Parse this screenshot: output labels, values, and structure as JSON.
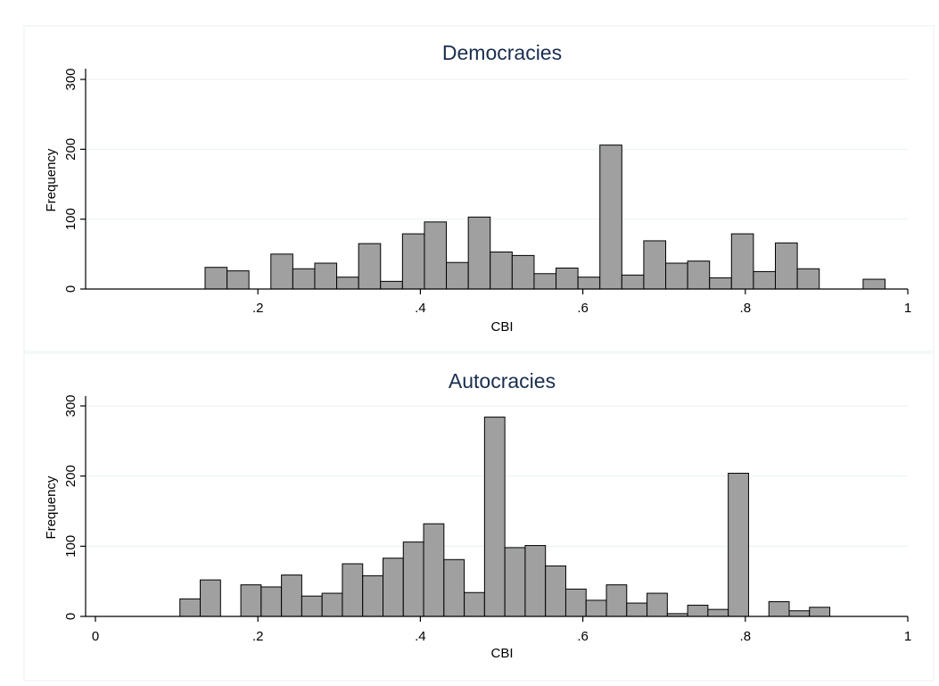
{
  "chart_data": [
    {
      "type": "bar",
      "title": "Democracies",
      "xlabel": "CBI",
      "ylabel": "Frequency",
      "xlim": [
        0,
        1
      ],
      "ylim": [
        0,
        300
      ],
      "xticks": [
        ".2",
        ".4",
        ".6",
        ".8",
        "1"
      ],
      "yticks": [
        "0",
        "100",
        "200",
        "300"
      ],
      "ytick_values": [
        0,
        100,
        200,
        300
      ],
      "xtick_values": [
        0.2,
        0.4,
        0.6,
        0.8,
        1.0
      ],
      "grid": true,
      "bin_width": 0.027,
      "bins": [
        {
          "x0": 0.135,
          "value": 31
        },
        {
          "x0": 0.162,
          "value": 26
        },
        {
          "x0": 0.216,
          "value": 50
        },
        {
          "x0": 0.243,
          "value": 29
        },
        {
          "x0": 0.27,
          "value": 37
        },
        {
          "x0": 0.297,
          "value": 17
        },
        {
          "x0": 0.324,
          "value": 65
        },
        {
          "x0": 0.351,
          "value": 11
        },
        {
          "x0": 0.378,
          "value": 79
        },
        {
          "x0": 0.405,
          "value": 96
        },
        {
          "x0": 0.432,
          "value": 38
        },
        {
          "x0": 0.459,
          "value": 103
        },
        {
          "x0": 0.486,
          "value": 53
        },
        {
          "x0": 0.513,
          "value": 48
        },
        {
          "x0": 0.54,
          "value": 22
        },
        {
          "x0": 0.567,
          "value": 30
        },
        {
          "x0": 0.594,
          "value": 17
        },
        {
          "x0": 0.621,
          "value": 206
        },
        {
          "x0": 0.648,
          "value": 20
        },
        {
          "x0": 0.675,
          "value": 69
        },
        {
          "x0": 0.702,
          "value": 37
        },
        {
          "x0": 0.729,
          "value": 40
        },
        {
          "x0": 0.756,
          "value": 16
        },
        {
          "x0": 0.783,
          "value": 79
        },
        {
          "x0": 0.81,
          "value": 25
        },
        {
          "x0": 0.837,
          "value": 66
        },
        {
          "x0": 0.864,
          "value": 29
        },
        {
          "x0": 0.945,
          "value": 14
        }
      ]
    },
    {
      "type": "bar",
      "title": "Autocracies",
      "xlabel": "CBI",
      "ylabel": "Frequency",
      "xlim": [
        0,
        1
      ],
      "ylim": [
        0,
        300
      ],
      "xticks": [
        "0",
        ".2",
        ".4",
        ".6",
        ".8",
        "1"
      ],
      "yticks": [
        "0",
        "100",
        "200",
        "300"
      ],
      "ytick_values": [
        0,
        100,
        200,
        300
      ],
      "xtick_values": [
        0,
        0.2,
        0.4,
        0.6,
        0.8,
        1.0
      ],
      "grid": true,
      "bin_width": 0.025,
      "bins": [
        {
          "x0": 0.104,
          "value": 25
        },
        {
          "x0": 0.129,
          "value": 52
        },
        {
          "x0": 0.179,
          "value": 45
        },
        {
          "x0": 0.204,
          "value": 42
        },
        {
          "x0": 0.229,
          "value": 59
        },
        {
          "x0": 0.254,
          "value": 29
        },
        {
          "x0": 0.279,
          "value": 33
        },
        {
          "x0": 0.304,
          "value": 75
        },
        {
          "x0": 0.329,
          "value": 58
        },
        {
          "x0": 0.354,
          "value": 83
        },
        {
          "x0": 0.379,
          "value": 106
        },
        {
          "x0": 0.404,
          "value": 132
        },
        {
          "x0": 0.429,
          "value": 81
        },
        {
          "x0": 0.454,
          "value": 34
        },
        {
          "x0": 0.479,
          "value": 284
        },
        {
          "x0": 0.504,
          "value": 98
        },
        {
          "x0": 0.529,
          "value": 101
        },
        {
          "x0": 0.554,
          "value": 72
        },
        {
          "x0": 0.579,
          "value": 39
        },
        {
          "x0": 0.604,
          "value": 23
        },
        {
          "x0": 0.629,
          "value": 45
        },
        {
          "x0": 0.654,
          "value": 19
        },
        {
          "x0": 0.679,
          "value": 33
        },
        {
          "x0": 0.704,
          "value": 4
        },
        {
          "x0": 0.729,
          "value": 16
        },
        {
          "x0": 0.754,
          "value": 10
        },
        {
          "x0": 0.779,
          "value": 204
        },
        {
          "x0": 0.829,
          "value": 21
        },
        {
          "x0": 0.854,
          "value": 8
        },
        {
          "x0": 0.879,
          "value": 13
        }
      ]
    }
  ]
}
